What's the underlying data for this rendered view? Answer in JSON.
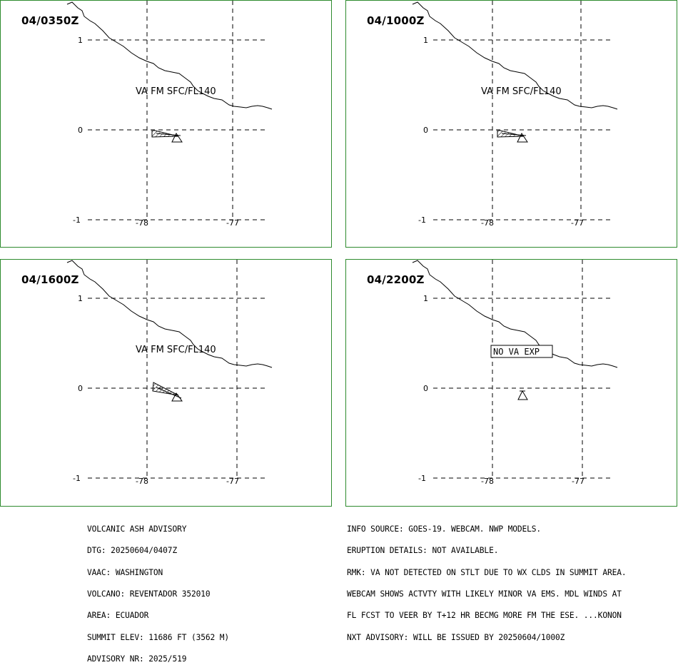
{
  "panels": [
    {
      "title": "04/0350Z",
      "label": "VA FM SFC/FL140",
      "cloud": "small",
      "no_va": false
    },
    {
      "title": "04/1000Z",
      "label": "VA FM SFC/FL140",
      "cloud": "small",
      "no_va": false
    },
    {
      "title": "04/1600Z",
      "label": "VA FM SFC/FL140",
      "cloud": "sheared",
      "no_va": false
    },
    {
      "title": "04/2200Z",
      "label": "NO  VA  EXP",
      "cloud": "none",
      "no_va": true
    }
  ],
  "axes": {
    "lat_ticks": [
      "1",
      "0",
      "-1"
    ],
    "lon_ticks": [
      "-78",
      "-77"
    ]
  },
  "advisory_left": [
    "VOLCANIC ASH ADVISORY",
    "DTG: 20250604/0407Z",
    "VAAC: WASHINGTON",
    "VOLCANO: REVENTADOR 352010",
    "AREA: ECUADOR",
    "SUMMIT ELEV: 11686 FT (3562 M)",
    "ADVISORY NR: 2025/519"
  ],
  "advisory_right": [
    "INFO SOURCE: GOES-19. WEBCAM. NWP MODELS.",
    "ERUPTION DETAILS: NOT AVAILABLE.",
    "RMK: VA NOT DETECTED ON STLT DUE TO WX CLDS IN SUMMIT AREA.",
    "WEBCAM SHOWS ACTVTY WITH LIKELY MINOR VA EMS. MDL WINDS AT",
    "FL FCST TO VEER BY T+12 HR BECMG MORE FM THE ESE. ...KONON",
    "NXT ADVISORY: WILL BE ISSUED BY 20250604/1000Z"
  ],
  "colors": {
    "panel_border": "#2e8b2e",
    "lines": "#000000"
  }
}
